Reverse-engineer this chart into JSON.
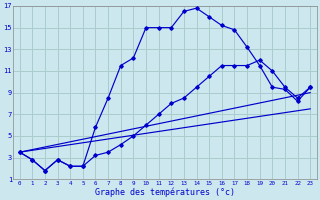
{
  "xlabel": "Graphe des températures (°c)",
  "background_color": "#cce8ee",
  "grid_color": "#aacccc",
  "line_color": "#0000cc",
  "xlim": [
    -0.5,
    23.5
  ],
  "ylim": [
    1,
    17
  ],
  "xticks": [
    0,
    1,
    2,
    3,
    4,
    5,
    6,
    7,
    8,
    9,
    10,
    11,
    12,
    13,
    14,
    15,
    16,
    17,
    18,
    19,
    20,
    21,
    22,
    23
  ],
  "yticks": [
    1,
    3,
    5,
    7,
    9,
    11,
    13,
    15,
    17
  ],
  "line1_x": [
    0,
    1,
    2,
    3,
    4,
    5,
    6,
    7,
    8,
    9,
    10,
    11,
    12,
    13,
    14,
    15,
    16,
    17,
    18,
    19,
    20,
    21,
    22,
    23
  ],
  "line1_y": [
    3.5,
    2.8,
    1.8,
    2.8,
    2.2,
    2.2,
    5.8,
    8.5,
    11.5,
    12.2,
    15.0,
    15.0,
    15.0,
    16.5,
    16.8,
    16.0,
    15.2,
    14.8,
    13.2,
    11.5,
    9.5,
    9.3,
    8.2,
    9.5
  ],
  "line2_x": [
    0,
    1,
    2,
    3,
    4,
    5,
    6,
    7,
    8,
    9,
    10,
    11,
    12,
    13,
    14,
    15,
    16,
    17,
    18,
    19,
    20,
    21,
    22,
    23
  ],
  "line2_y": [
    3.5,
    2.8,
    1.8,
    2.8,
    2.2,
    2.2,
    3.2,
    3.5,
    4.2,
    5.0,
    6.0,
    7.0,
    8.0,
    8.5,
    9.5,
    10.5,
    11.5,
    11.5,
    11.5,
    12.0,
    11.0,
    9.5,
    8.5,
    9.5
  ],
  "line3_x": [
    0,
    23
  ],
  "line3_y": [
    3.5,
    9.0
  ],
  "line4_x": [
    0,
    23
  ],
  "line4_y": [
    3.5,
    7.5
  ]
}
